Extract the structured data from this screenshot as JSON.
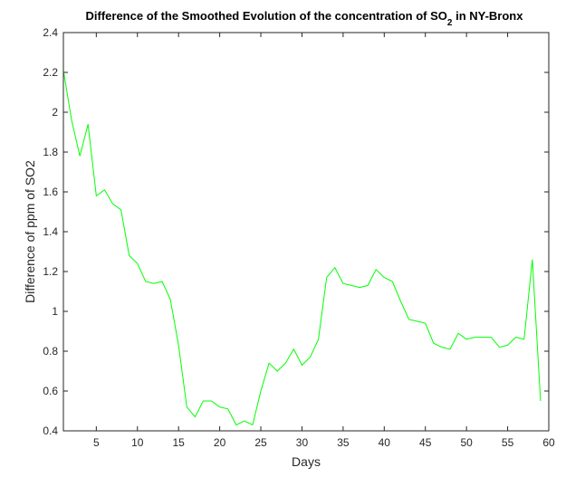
{
  "chart_data": {
    "type": "line",
    "title": "Difference of the Smoothed Evolution of the concentration of SO",
    "title_subscript": "2",
    "title_suffix": " in NY-Bronx",
    "xlabel": "Days",
    "ylabel": "Difference of ppm of SO2",
    "xlim": [
      1,
      60
    ],
    "ylim": [
      0.4,
      2.4
    ],
    "xticks": [
      5,
      10,
      15,
      20,
      25,
      30,
      35,
      40,
      45,
      50,
      55,
      60
    ],
    "yticks": [
      0.4,
      0.6,
      0.8,
      1,
      1.2,
      1.4,
      1.6,
      1.8,
      2,
      2.2,
      2.4
    ],
    "ytick_labels": [
      "0.4",
      "0.6",
      "0.8",
      "1",
      "1.2",
      "1.4",
      "1.6",
      "1.8",
      "2",
      "2.2",
      "2.4"
    ],
    "grid": false,
    "line_color": "#00ff00",
    "series": [
      {
        "x": [
          1,
          2,
          3,
          4,
          5,
          6,
          7,
          8,
          9,
          10,
          11,
          12,
          13,
          14,
          15,
          16,
          17,
          18,
          19,
          20,
          21,
          22,
          23,
          24,
          25,
          26,
          27,
          28,
          29,
          30,
          31,
          32,
          33,
          34,
          35,
          36,
          37,
          38,
          39,
          40,
          41,
          42,
          43,
          44,
          45,
          46,
          47,
          48,
          49,
          50,
          51,
          52,
          53,
          54,
          55,
          56,
          57,
          58,
          59
        ],
        "values": [
          2.21,
          1.96,
          1.78,
          1.94,
          1.58,
          1.61,
          1.54,
          1.51,
          1.28,
          1.24,
          1.15,
          1.14,
          1.15,
          1.06,
          0.83,
          0.52,
          0.47,
          0.55,
          0.55,
          0.52,
          0.51,
          0.43,
          0.45,
          0.43,
          0.6,
          0.74,
          0.7,
          0.74,
          0.81,
          0.73,
          0.77,
          0.86,
          1.17,
          1.22,
          1.14,
          1.13,
          1.12,
          1.13,
          1.21,
          1.17,
          1.15,
          1.05,
          0.96,
          0.95,
          0.94,
          0.84,
          0.82,
          0.81,
          0.89,
          0.86,
          0.87,
          0.87,
          0.87,
          0.82,
          0.83,
          0.87,
          0.86,
          1.26,
          0.55
        ]
      }
    ]
  }
}
